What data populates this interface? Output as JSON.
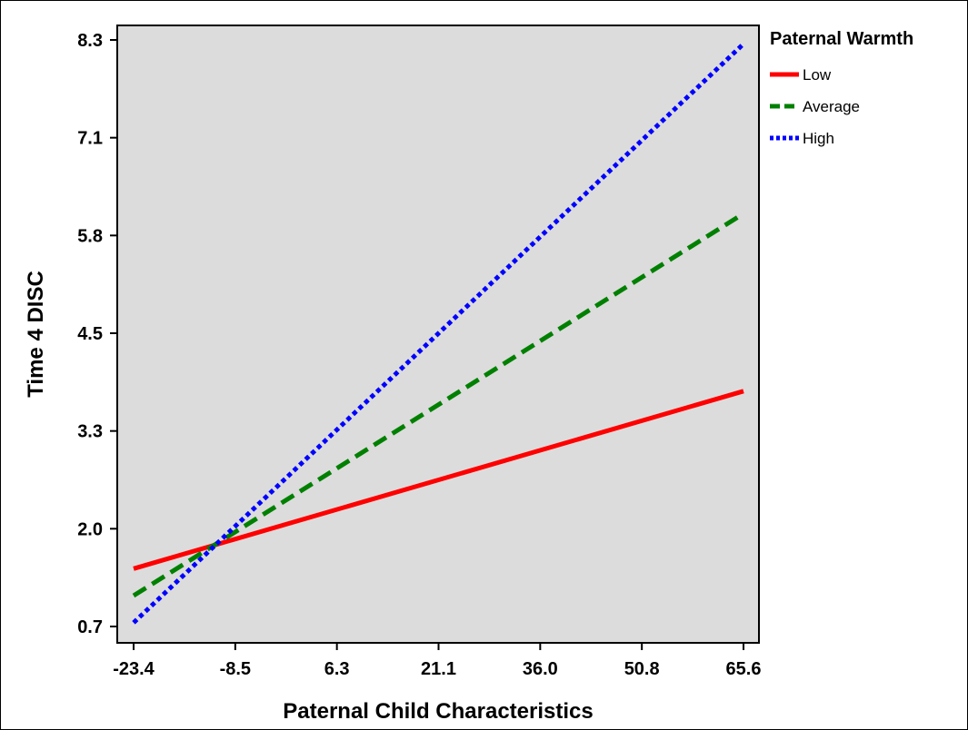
{
  "chart_data": {
    "type": "line",
    "xlabel": "Paternal Child Characteristics",
    "ylabel": "Time 4 DISC",
    "xlim": [
      -23.4,
      65.6
    ],
    "ylim": [
      0.7,
      8.3
    ],
    "x_ticks": [
      "-23.4",
      "-8.5",
      "6.3",
      "21.1",
      "36.0",
      "50.8",
      "65.6"
    ],
    "y_ticks": [
      "0.7",
      "2.0",
      "3.3",
      "4.5",
      "5.8",
      "7.1",
      "8.3"
    ],
    "grid": false,
    "background": "#dcdcdc",
    "legend": {
      "title": "Paternal Warmth",
      "position": "right"
    },
    "series": [
      {
        "name": "Low",
        "color": "#ff0000",
        "style": "solid",
        "x": [
          -23.4,
          65.6
        ],
        "y": [
          1.45,
          3.75
        ]
      },
      {
        "name": "Average",
        "color": "#008000",
        "style": "dashed",
        "x": [
          -23.4,
          65.6
        ],
        "y": [
          1.1,
          6.05
        ]
      },
      {
        "name": "High",
        "color": "#0000ff",
        "style": "dotted",
        "x": [
          -23.4,
          65.6
        ],
        "y": [
          0.75,
          8.25
        ]
      }
    ]
  }
}
